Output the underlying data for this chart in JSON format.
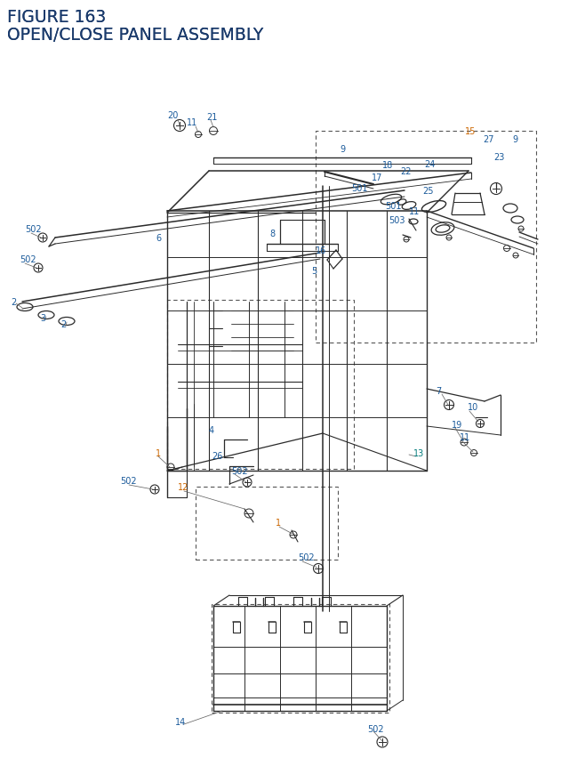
{
  "title_line1": "FIGURE 163",
  "title_line2": "OPEN/CLOSE PANEL ASSEMBLY",
  "title_color": "#1a3a6b",
  "bg_color": "#ffffff",
  "line_color": "#2a2a2a",
  "label_color": "#1a5a9a",
  "label_orange": "#cc6600",
  "label_teal": "#007a7a",
  "figsize": [
    6.4,
    8.62
  ],
  "dpi": 100
}
